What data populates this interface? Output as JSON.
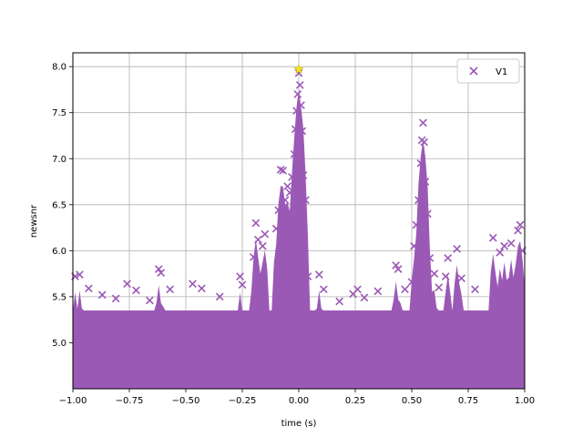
{
  "chart_data": {
    "type": "scatter",
    "xlabel": "time (s)",
    "ylabel": "newsnr",
    "xlim": [
      -1.0,
      1.0
    ],
    "ylim": [
      4.5,
      8.15
    ],
    "grid": true,
    "legend_placement": "top-right",
    "marker": "x",
    "x_ticks": [
      "−1.00",
      "−0.75",
      "−0.50",
      "−0.25",
      "0.00",
      "0.25",
      "0.50",
      "0.75",
      "1.00"
    ],
    "y_ticks": [
      "5.0",
      "5.5",
      "6.0",
      "6.5",
      "7.0",
      "7.5",
      "8.0"
    ],
    "series": [
      {
        "name": "V1",
        "color": "#9b59b6",
        "points": [
          [
            -0.99,
            5.72
          ],
          [
            -0.97,
            5.74
          ],
          [
            -0.93,
            5.59
          ],
          [
            -0.87,
            5.52
          ],
          [
            -0.81,
            5.48
          ],
          [
            -0.76,
            5.64
          ],
          [
            -0.72,
            5.57
          ],
          [
            -0.66,
            5.46
          ],
          [
            -0.62,
            5.8
          ],
          [
            -0.61,
            5.76
          ],
          [
            -0.57,
            5.58
          ],
          [
            -0.47,
            5.64
          ],
          [
            -0.43,
            5.59
          ],
          [
            -0.35,
            5.5
          ],
          [
            -0.26,
            5.72
          ],
          [
            -0.25,
            5.63
          ],
          [
            -0.2,
            5.93
          ],
          [
            -0.19,
            6.3
          ],
          [
            -0.18,
            6.12
          ],
          [
            -0.16,
            6.05
          ],
          [
            -0.15,
            6.18
          ],
          [
            -0.1,
            6.24
          ],
          [
            -0.09,
            6.44
          ],
          [
            -0.08,
            6.88
          ],
          [
            -0.07,
            6.87
          ],
          [
            -0.06,
            6.55
          ],
          [
            -0.05,
            6.7
          ],
          [
            -0.04,
            6.63
          ],
          [
            -0.03,
            6.8
          ],
          [
            -0.02,
            7.05
          ],
          [
            -0.015,
            7.32
          ],
          [
            -0.01,
            7.52
          ],
          [
            -0.005,
            7.7
          ],
          [
            0.0,
            7.93
          ],
          [
            0.005,
            7.8
          ],
          [
            0.01,
            7.58
          ],
          [
            0.015,
            7.3
          ],
          [
            0.02,
            6.82
          ],
          [
            0.03,
            6.55
          ],
          [
            0.04,
            5.72
          ],
          [
            0.09,
            5.74
          ],
          [
            0.11,
            5.58
          ],
          [
            0.18,
            5.45
          ],
          [
            0.24,
            5.53
          ],
          [
            0.26,
            5.58
          ],
          [
            0.29,
            5.49
          ],
          [
            0.35,
            5.56
          ],
          [
            0.43,
            5.84
          ],
          [
            0.44,
            5.8
          ],
          [
            0.47,
            5.58
          ],
          [
            0.5,
            5.66
          ],
          [
            0.51,
            6.05
          ],
          [
            0.52,
            6.28
          ],
          [
            0.53,
            6.55
          ],
          [
            0.54,
            6.95
          ],
          [
            0.545,
            7.2
          ],
          [
            0.55,
            7.39
          ],
          [
            0.555,
            7.18
          ],
          [
            0.56,
            6.75
          ],
          [
            0.57,
            6.4
          ],
          [
            0.58,
            5.92
          ],
          [
            0.6,
            5.75
          ],
          [
            0.62,
            5.6
          ],
          [
            0.65,
            5.72
          ],
          [
            0.66,
            5.92
          ],
          [
            0.7,
            6.02
          ],
          [
            0.72,
            5.7
          ],
          [
            0.78,
            5.58
          ],
          [
            0.86,
            6.14
          ],
          [
            0.89,
            5.98
          ],
          [
            0.91,
            6.05
          ],
          [
            0.94,
            6.08
          ],
          [
            0.97,
            6.22
          ],
          [
            0.98,
            6.28
          ],
          [
            0.99,
            6.0
          ]
        ]
      }
    ],
    "highlight": {
      "x": 0.0,
      "y": 7.97,
      "color": "#f4e61a",
      "marker": "star"
    }
  },
  "legend": {
    "label": "V1"
  }
}
